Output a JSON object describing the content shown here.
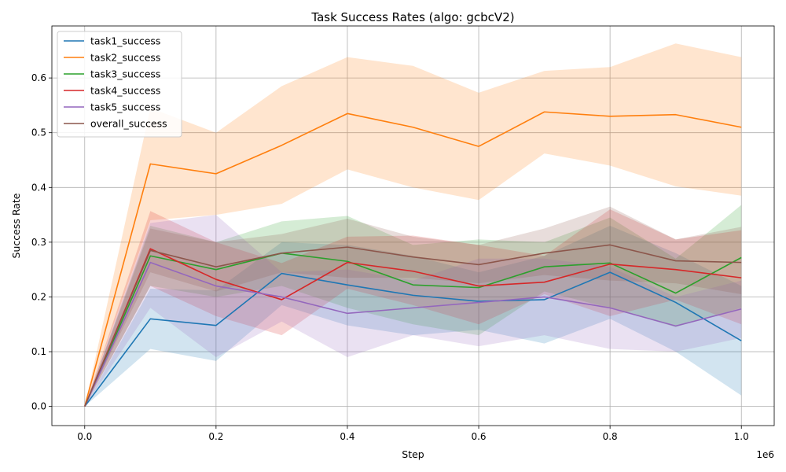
{
  "chart_data": {
    "type": "line",
    "title": "Task Success Rates (algo: gcbcV2)",
    "xlabel": "Step",
    "ylabel": "Success Rate",
    "x_offset_label": "1e6",
    "xlim": [
      -50000,
      1050000
    ],
    "ylim": [
      -0.035,
      0.695
    ],
    "x_ticks": [
      0,
      200000,
      400000,
      600000,
      800000,
      1000000
    ],
    "x_tick_labels": [
      "0.0",
      "0.2",
      "0.4",
      "0.6",
      "0.8",
      "1.0"
    ],
    "y_ticks": [
      0.0,
      0.1,
      0.2,
      0.3,
      0.4,
      0.5,
      0.6
    ],
    "y_tick_labels": [
      "0.0",
      "0.1",
      "0.2",
      "0.3",
      "0.4",
      "0.5",
      "0.6"
    ],
    "grid": true,
    "legend_position": "top-left",
    "x": [
      0,
      100000,
      200000,
      300000,
      400000,
      500000,
      600000,
      700000,
      800000,
      900000,
      1000000
    ],
    "series": [
      {
        "name": "task1_success",
        "color": "#1f77b4",
        "values": [
          0.0,
          0.16,
          0.148,
          0.243,
          0.222,
          0.203,
          0.192,
          0.195,
          0.245,
          0.19,
          0.12
        ],
        "lower": [
          0.0,
          0.105,
          0.083,
          0.185,
          0.148,
          0.13,
          0.14,
          0.115,
          0.16,
          0.1,
          0.02
        ],
        "upper": [
          0.0,
          0.215,
          0.212,
          0.3,
          0.295,
          0.275,
          0.245,
          0.275,
          0.33,
          0.28,
          0.22
        ]
      },
      {
        "name": "task2_success",
        "color": "#ff7f0e",
        "values": [
          0.0,
          0.443,
          0.425,
          0.477,
          0.535,
          0.51,
          0.475,
          0.538,
          0.53,
          0.533,
          0.51
        ],
        "lower": [
          0.0,
          0.34,
          0.35,
          0.37,
          0.433,
          0.4,
          0.377,
          0.462,
          0.44,
          0.402,
          0.385
        ],
        "upper": [
          0.0,
          0.545,
          0.5,
          0.585,
          0.638,
          0.622,
          0.573,
          0.613,
          0.62,
          0.663,
          0.638
        ]
      },
      {
        "name": "task3_success",
        "color": "#2ca02c",
        "values": [
          0.0,
          0.275,
          0.25,
          0.28,
          0.265,
          0.222,
          0.217,
          0.255,
          0.262,
          0.207,
          0.272
        ],
        "lower": [
          0.0,
          0.22,
          0.2,
          0.22,
          0.18,
          0.15,
          0.13,
          0.21,
          0.18,
          0.145,
          0.18
        ],
        "upper": [
          0.0,
          0.33,
          0.3,
          0.338,
          0.348,
          0.295,
          0.305,
          0.3,
          0.345,
          0.27,
          0.368
        ]
      },
      {
        "name": "task4_success",
        "color": "#d62728",
        "values": [
          0.0,
          0.288,
          0.232,
          0.195,
          0.263,
          0.247,
          0.22,
          0.227,
          0.26,
          0.25,
          0.235
        ],
        "lower": [
          0.0,
          0.22,
          0.165,
          0.13,
          0.215,
          0.185,
          0.15,
          0.205,
          0.165,
          0.195,
          0.15
        ],
        "upper": [
          0.0,
          0.357,
          0.3,
          0.262,
          0.31,
          0.312,
          0.295,
          0.275,
          0.36,
          0.305,
          0.322
        ]
      },
      {
        "name": "task5_success",
        "color": "#9467bd",
        "values": [
          0.0,
          0.263,
          0.22,
          0.2,
          0.17,
          0.18,
          0.19,
          0.2,
          0.18,
          0.147,
          0.178
        ],
        "lower": [
          0.0,
          0.18,
          0.09,
          0.155,
          0.09,
          0.13,
          0.11,
          0.13,
          0.105,
          0.1,
          0.125
        ],
        "upper": [
          0.0,
          0.335,
          0.35,
          0.245,
          0.25,
          0.23,
          0.27,
          0.27,
          0.255,
          0.2,
          0.23
        ]
      },
      {
        "name": "overall_success",
        "color": "#8c564b",
        "values": [
          0.0,
          0.285,
          0.255,
          0.28,
          0.291,
          0.273,
          0.259,
          0.28,
          0.295,
          0.266,
          0.263
        ],
        "lower": [
          0.0,
          0.245,
          0.21,
          0.245,
          0.235,
          0.235,
          0.225,
          0.24,
          0.23,
          0.225,
          0.205
        ],
        "upper": [
          0.0,
          0.325,
          0.3,
          0.315,
          0.343,
          0.31,
          0.295,
          0.325,
          0.365,
          0.305,
          0.328
        ]
      }
    ]
  }
}
